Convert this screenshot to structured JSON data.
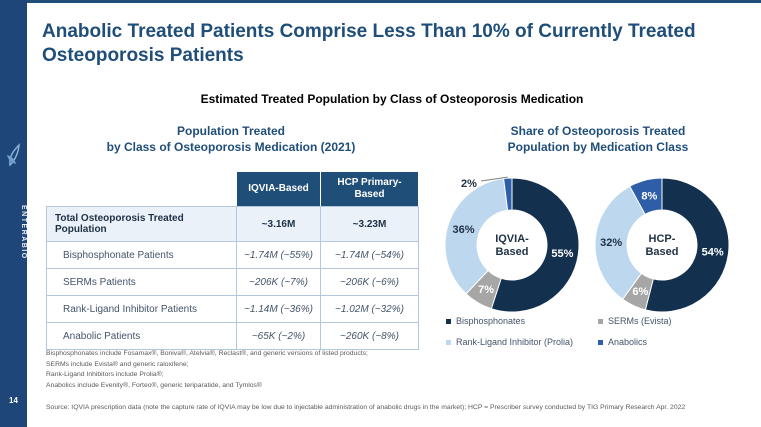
{
  "slide": {
    "page_number": "14",
    "brand": "ENTERABIO",
    "title_line1": "Anabolic Treated Patients Comprise Less Than 10% of Currently Treated",
    "title_line2": "Osteoporosis Patients",
    "subtitle": "Estimated Treated Population by Class of Osteoporosis Medication"
  },
  "table_section": {
    "heading_line1": "Population Treated",
    "heading_line2": "by Class of Osteoporosis Medication (2021)",
    "columns": [
      "IQVIA-Based",
      "HCP Primary-Based"
    ],
    "rows": [
      {
        "label": "Total Osteoporosis Treated Population",
        "iqvia": "~3.16M",
        "hcp": "~3.23M",
        "total": true
      },
      {
        "label": "Bisphosphonate Patients",
        "iqvia": "~1.74M (~55%)",
        "hcp": "~1.74M (~54%)"
      },
      {
        "label": "SERMs Patients",
        "iqvia": "~206K (~7%)",
        "hcp": "~206K (~6%)"
      },
      {
        "label": "Rank-Ligand Inhibitor Patients",
        "iqvia": "~1.14M (~36%)",
        "hcp": "~1.02M (~32%)"
      },
      {
        "label": "Anabolic Patients",
        "iqvia": "~65K (~2%)",
        "hcp": "~260K (~8%)"
      }
    ]
  },
  "charts_section": {
    "heading_line1": "Share of Osteoporosis Treated",
    "heading_line2": "Population by Medication Class"
  },
  "palette": {
    "navy": "#13304F",
    "gray": "#A6A6A6",
    "light_blue": "#BDD7EE",
    "med_blue": "#2F5EA8",
    "accent_blue": "#1F4E79",
    "dark_label": "#1F3044"
  },
  "chart_data": [
    {
      "type": "pie",
      "title": "IQVIA-Based",
      "center_label": [
        "IQVIA-",
        "Based"
      ],
      "legend_position": "bottom",
      "segments": [
        {
          "name": "Bisphosphonates",
          "value": 55,
          "label": "55%",
          "color_key": "navy",
          "label_color": "white"
        },
        {
          "name": "SERMs (Evista)",
          "value": 7,
          "label": "7%",
          "color_key": "gray",
          "label_color": "white"
        },
        {
          "name": "Rank-Ligand Inhibitor (Prolia)",
          "value": 36,
          "label": "36%",
          "color_key": "light_blue",
          "label_color": "dark"
        },
        {
          "name": "Anabolics",
          "value": 2,
          "label": "2%",
          "color_key": "med_blue",
          "label_color": "dark",
          "outside": true
        }
      ]
    },
    {
      "type": "pie",
      "title": "HCP-Based",
      "center_label": [
        "HCP-",
        "Based"
      ],
      "legend_position": "bottom",
      "segments": [
        {
          "name": "Bisphosphonates",
          "value": 54,
          "label": "54%",
          "color_key": "navy",
          "label_color": "white"
        },
        {
          "name": "SERMs (Evista)",
          "value": 6,
          "label": "6%",
          "color_key": "gray",
          "label_color": "white"
        },
        {
          "name": "Rank-Ligand Inhibitor (Prolia)",
          "value": 32,
          "label": "32%",
          "color_key": "light_blue",
          "label_color": "dark"
        },
        {
          "name": "Anabolics",
          "value": 8,
          "label": "8%",
          "color_key": "med_blue",
          "label_color": "white"
        }
      ]
    }
  ],
  "legend": [
    {
      "label": "Bisphosphonates",
      "color_key": "navy"
    },
    {
      "label": "SERMs (Evista)",
      "color_key": "gray"
    },
    {
      "label": "Rank-Ligand Inhibitor (Prolia)",
      "color_key": "light_blue"
    },
    {
      "label": "Anabolics",
      "color_key": "med_blue"
    }
  ],
  "footnotes": [
    "Bisphosphonates include Fosamax®, Boniva®, Atelvia®, Reclast®, and generic versions of listed products;",
    "SERMs include Evista® and generic raloxifene;",
    "Rank-Ligand Inhibitors include Prolia®;",
    "Anabolics include Evenity®, Forteo®, generic teriparatide, and Tymlos®"
  ],
  "source": "Source: IQVIA prescription data (note the capture rate of IQVIA may be low due to injectable administration of anabolic drugs in the market); HCP = Prescriber survey conducted by TIG Primary Research Apr. 2022"
}
